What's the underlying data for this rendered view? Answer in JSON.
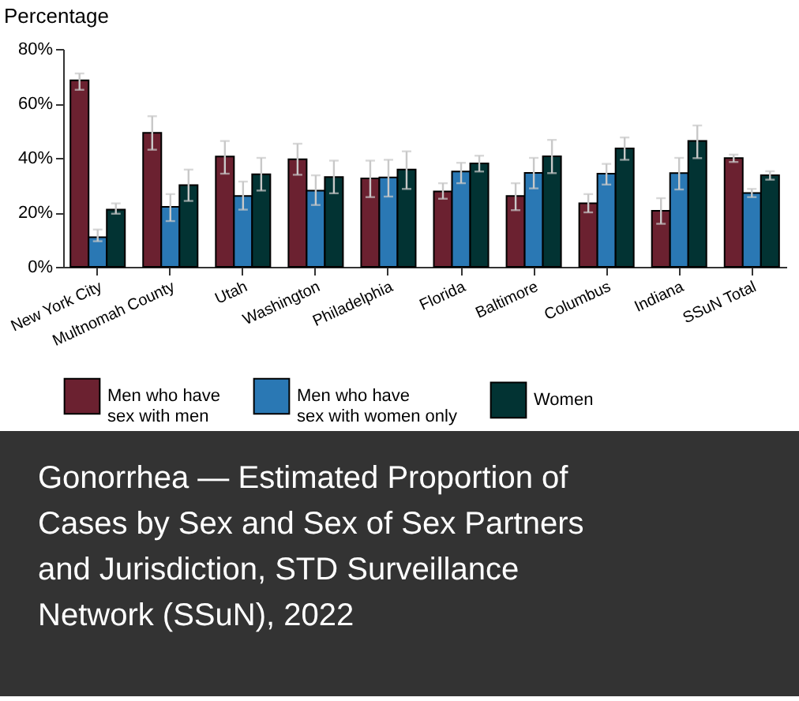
{
  "chart_data": {
    "type": "bar",
    "title": "Gonorrhea — Estimated Proportion of Cases by Sex and Sex of Sex Partners and Jurisdiction, STD Surveillance Network (SSuN), 2022",
    "ylabel": "Percentage",
    "categories": [
      "New York City",
      "Multnomah County",
      "Utah",
      "Washington",
      "Philadelphia",
      "Florida",
      "Baltimore",
      "Columbus",
      "Indiana",
      "SSuN Total"
    ],
    "series": [
      {
        "name": "Men who have sex with men",
        "color": "#6b2130",
        "values": [
          68.5,
          49.2,
          40.5,
          39.5,
          32.5,
          27.7,
          26,
          23.3,
          20.6,
          39.9
        ],
        "errors": [
          [
            65,
            71
          ],
          [
            43,
            55.3
          ],
          [
            34.2,
            46.2
          ],
          [
            33.8,
            45.2
          ],
          [
            25.6,
            39
          ],
          [
            25,
            30.7
          ],
          [
            20.8,
            30.7
          ],
          [
            20,
            26.7
          ],
          [
            15.8,
            25.2
          ],
          [
            38.5,
            41.2
          ]
        ]
      },
      {
        "name": "Men who have sex with women only",
        "color": "#2a78b4",
        "values": [
          10.9,
          22,
          26,
          28,
          32.8,
          35,
          34.5,
          34.2,
          34.4,
          27.1
        ],
        "errors": [
          [
            9.4,
            13.7
          ],
          [
            16.8,
            26.7
          ],
          [
            21,
            31.3
          ],
          [
            22.7,
            33.6
          ],
          [
            25.8,
            39.3
          ],
          [
            30.7,
            38.2
          ],
          [
            28.8,
            40
          ],
          [
            30.2,
            37.8
          ],
          [
            28.4,
            40
          ],
          [
            25.6,
            28.6
          ]
        ]
      },
      {
        "name": "Women",
        "color": "#023333",
        "values": [
          21,
          30,
          34,
          33,
          35.7,
          38,
          40.6,
          43.5,
          46.2,
          33.6
        ],
        "errors": [
          [
            19.5,
            23.3
          ],
          [
            24.2,
            35.7
          ],
          [
            28,
            40
          ],
          [
            27,
            39
          ],
          [
            28.6,
            42.4
          ],
          [
            35,
            40.8
          ],
          [
            34.4,
            46.6
          ],
          [
            39.3,
            47.5
          ],
          [
            39.9,
            51.9
          ],
          [
            32,
            35.1
          ]
        ]
      }
    ],
    "ylim": [
      0,
      80
    ],
    "yticks": [
      {
        "value": 0,
        "label": "0%"
      },
      {
        "value": 20,
        "label": "20%"
      },
      {
        "value": 40,
        "label": "40%"
      },
      {
        "value": 60,
        "label": "60%"
      },
      {
        "value": 80,
        "label": "80%"
      }
    ],
    "legend": "bottom",
    "grid": false
  }
}
